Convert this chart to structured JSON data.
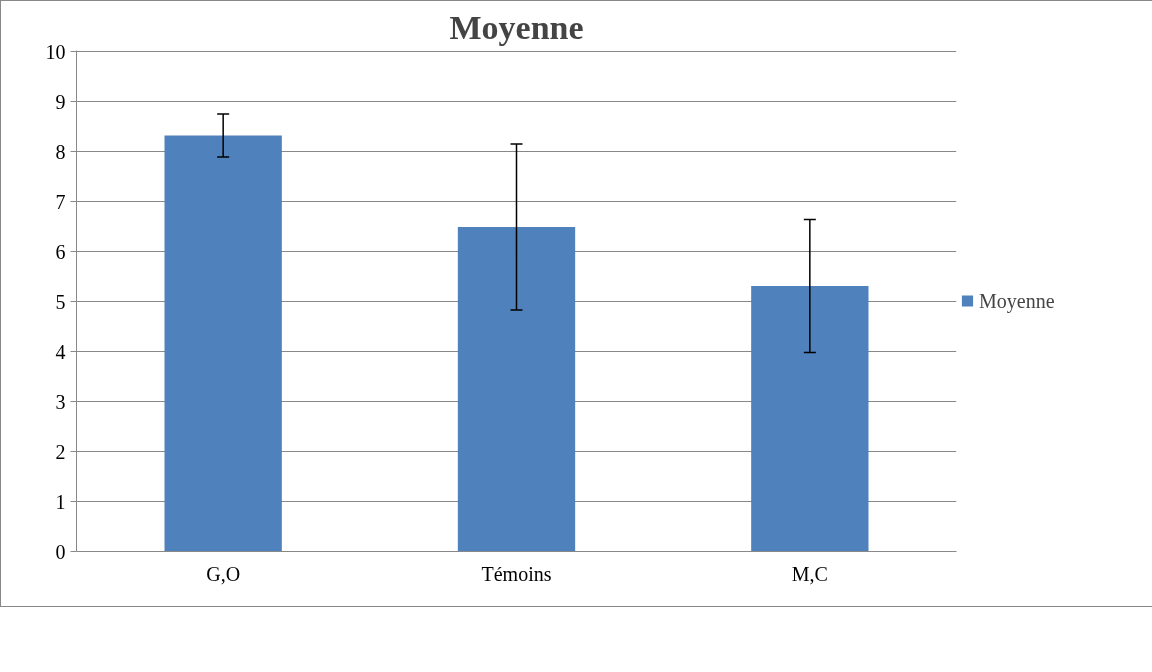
{
  "chart_data": {
    "type": "bar",
    "title": "Moyenne",
    "categories": [
      "G,O",
      "Témoins",
      "M,C"
    ],
    "series": [
      {
        "name": "Moyenne",
        "color": "#4f81bd",
        "values": [
          8.32,
          6.49,
          5.31
        ],
        "errors": [
          0.43,
          1.66,
          1.33
        ]
      }
    ],
    "ylim": [
      0,
      10
    ],
    "yticks": [
      0,
      1,
      2,
      3,
      4,
      5,
      6,
      7,
      8,
      9,
      10
    ],
    "grid": "y",
    "legend": "right"
  }
}
